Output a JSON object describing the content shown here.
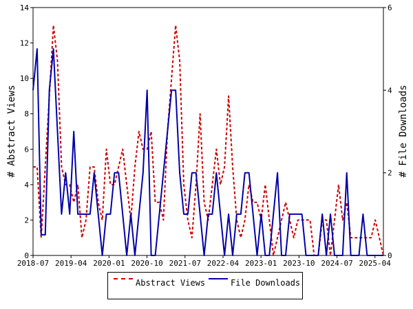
{
  "chart_data": {
    "type": "line",
    "y_left": {
      "label": "# Abstract Views",
      "ticks": [
        0,
        2,
        4,
        6,
        8,
        10,
        12,
        14
      ],
      "lim": [
        0,
        14
      ]
    },
    "y_right": {
      "label": "# File Downloads",
      "ticks": [
        0,
        2,
        4,
        6
      ],
      "lim": [
        0,
        6
      ]
    },
    "x_ticks": [
      "2018-07",
      "2019-04",
      "2020-01",
      "2020-10",
      "2021-07",
      "2022-04",
      "2023-01",
      "2023-10",
      "2024-07",
      "2025-04"
    ],
    "x_range": [
      "2018-07",
      "2025-06"
    ],
    "grid": false,
    "legend": "bottom",
    "series": [
      {
        "name": "Abstract Views",
        "axis": "left",
        "color": "#cc0000",
        "style": "dashed",
        "values": [
          5,
          5,
          1,
          5,
          9,
          13,
          11,
          5,
          4,
          4,
          3,
          4,
          1,
          2,
          5,
          5,
          3,
          2,
          6,
          4,
          4,
          5,
          6,
          4,
          2,
          5,
          7,
          6,
          6,
          7,
          3,
          3,
          2,
          7,
          10,
          13,
          11,
          4,
          2,
          1,
          4,
          8,
          3,
          2,
          4,
          6,
          4,
          5,
          9,
          5,
          2,
          1,
          2,
          4,
          3,
          3,
          2,
          4,
          2,
          0,
          1,
          2,
          3,
          2,
          1,
          2,
          2,
          2,
          2,
          0,
          0,
          2,
          2,
          0,
          2,
          4,
          2,
          3,
          1,
          1,
          1,
          1,
          1,
          1,
          2,
          1,
          0
        ]
      },
      {
        "name": "File Downloads",
        "axis": "right",
        "color": "#0000aa",
        "style": "solid",
        "values": [
          4,
          5,
          0.5,
          0.5,
          4,
          5,
          3,
          1,
          2,
          1,
          3,
          1,
          1,
          1,
          1,
          2,
          1,
          0,
          1,
          1,
          2,
          2,
          1,
          0,
          1,
          0,
          1,
          2,
          4,
          0,
          0,
          1,
          2,
          3,
          4,
          4,
          2,
          1,
          1,
          2,
          2,
          1,
          0,
          1,
          1,
          2,
          1,
          0,
          1,
          0,
          1,
          1,
          2,
          2,
          1,
          0,
          1,
          0,
          0,
          1,
          2,
          0,
          0,
          1,
          1,
          1,
          1,
          0,
          0,
          0,
          0,
          1,
          0,
          1,
          0,
          0,
          0,
          2,
          0,
          0,
          0,
          1,
          0,
          0,
          0,
          0,
          0
        ]
      }
    ]
  }
}
